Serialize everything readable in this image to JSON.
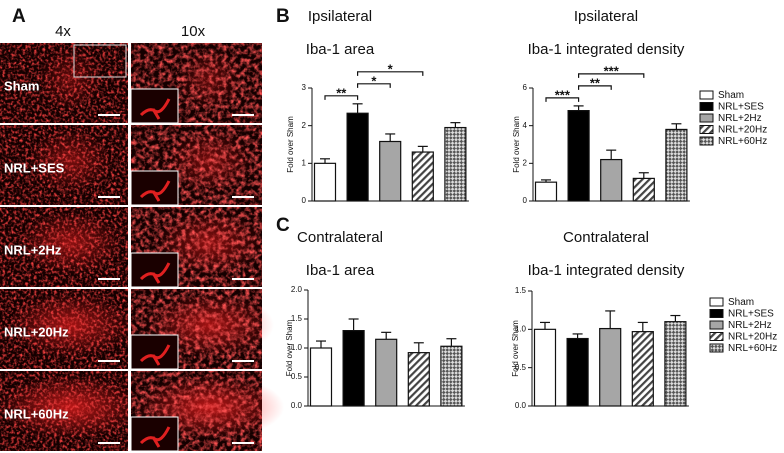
{
  "panel_labels": [
    "A",
    "B",
    "C"
  ],
  "panel_a": {
    "columns": [
      "4x",
      "10x"
    ],
    "rows": [
      "Sham",
      "NRL+SES",
      "NRL+2Hz",
      "NRL+20Hz",
      "NRL+60Hz"
    ]
  },
  "chart_data": [
    {
      "type": "bar",
      "title": "Ipsilateral",
      "subtitle": "Iba-1 area",
      "ylabel": "Fold over Sham",
      "values": [
        1.0,
        2.33,
        1.58,
        1.3,
        1.95
      ],
      "errors": [
        0.12,
        0.25,
        0.2,
        0.15,
        0.13
      ],
      "fills": [
        "#ffffff",
        "#000000",
        "#a6a6a6",
        "hatch",
        "checker"
      ],
      "ylim": [
        0,
        3
      ],
      "yticks": [
        0,
        1,
        2,
        3
      ],
      "annotations": [
        {
          "text": "**",
          "from": 0,
          "to": 1
        },
        {
          "text": "*",
          "from": 1,
          "to": 2
        },
        {
          "text": "*",
          "from": 1,
          "to": 3
        }
      ]
    },
    {
      "type": "bar",
      "title": "Ipsilateral",
      "subtitle": "Iba-1 integrated density",
      "ylabel": "Fold over Sham",
      "categories": [
        "Sham",
        "NRL+SES",
        "NRL+2Hz",
        "NRL+20Hz",
        "NRL+60Hz"
      ],
      "values": [
        1.0,
        4.8,
        2.2,
        1.2,
        3.8
      ],
      "errors": [
        0.12,
        0.25,
        0.5,
        0.3,
        0.3
      ],
      "fills": [
        "#ffffff",
        "#000000",
        "#a6a6a6",
        "hatch",
        "checker"
      ],
      "ylim": [
        0,
        6
      ],
      "yticks": [
        0,
        2,
        4,
        6
      ],
      "legend": "right",
      "annotations": [
        {
          "text": "***",
          "from": 0,
          "to": 1
        },
        {
          "text": "**",
          "from": 1,
          "to": 2
        },
        {
          "text": "***",
          "from": 1,
          "to": 3
        }
      ]
    },
    {
      "type": "bar",
      "title": "Contralateral",
      "subtitle": "Iba-1 area",
      "ylabel": "Fold over Sham",
      "values": [
        1.0,
        1.3,
        1.15,
        0.92,
        1.03
      ],
      "errors": [
        0.12,
        0.2,
        0.12,
        0.17,
        0.13
      ],
      "fills": [
        "#ffffff",
        "#000000",
        "#a6a6a6",
        "hatch",
        "checker"
      ],
      "ylim": [
        0,
        2
      ],
      "yticks": [
        {
          "value": 0,
          "label": "0.0"
        },
        0.5,
        {
          "value": 1,
          "label": "1.0"
        },
        1.5,
        {
          "value": 2,
          "label": "2.0"
        }
      ]
    },
    {
      "type": "bar",
      "title": "Contralateral",
      "subtitle": "Iba-1 integrated density",
      "ylabel": "Fold over Sham",
      "categories": [
        "Sham",
        "NRL+SES",
        "NRL+2Hz",
        "NRL+20Hz",
        "NRL+60Hz"
      ],
      "values": [
        1.0,
        0.88,
        1.01,
        0.97,
        1.1
      ],
      "errors": [
        0.09,
        0.06,
        0.23,
        0.12,
        0.08
      ],
      "fills": [
        "#ffffff",
        "#000000",
        "#a6a6a6",
        "hatch",
        "checker"
      ],
      "ylim": [
        0,
        1.5
      ],
      "yticks": [
        {
          "value": 0,
          "label": "0.0"
        },
        0.5,
        {
          "value": 1,
          "label": "1.0"
        },
        1.5
      ],
      "legend": "right"
    }
  ]
}
